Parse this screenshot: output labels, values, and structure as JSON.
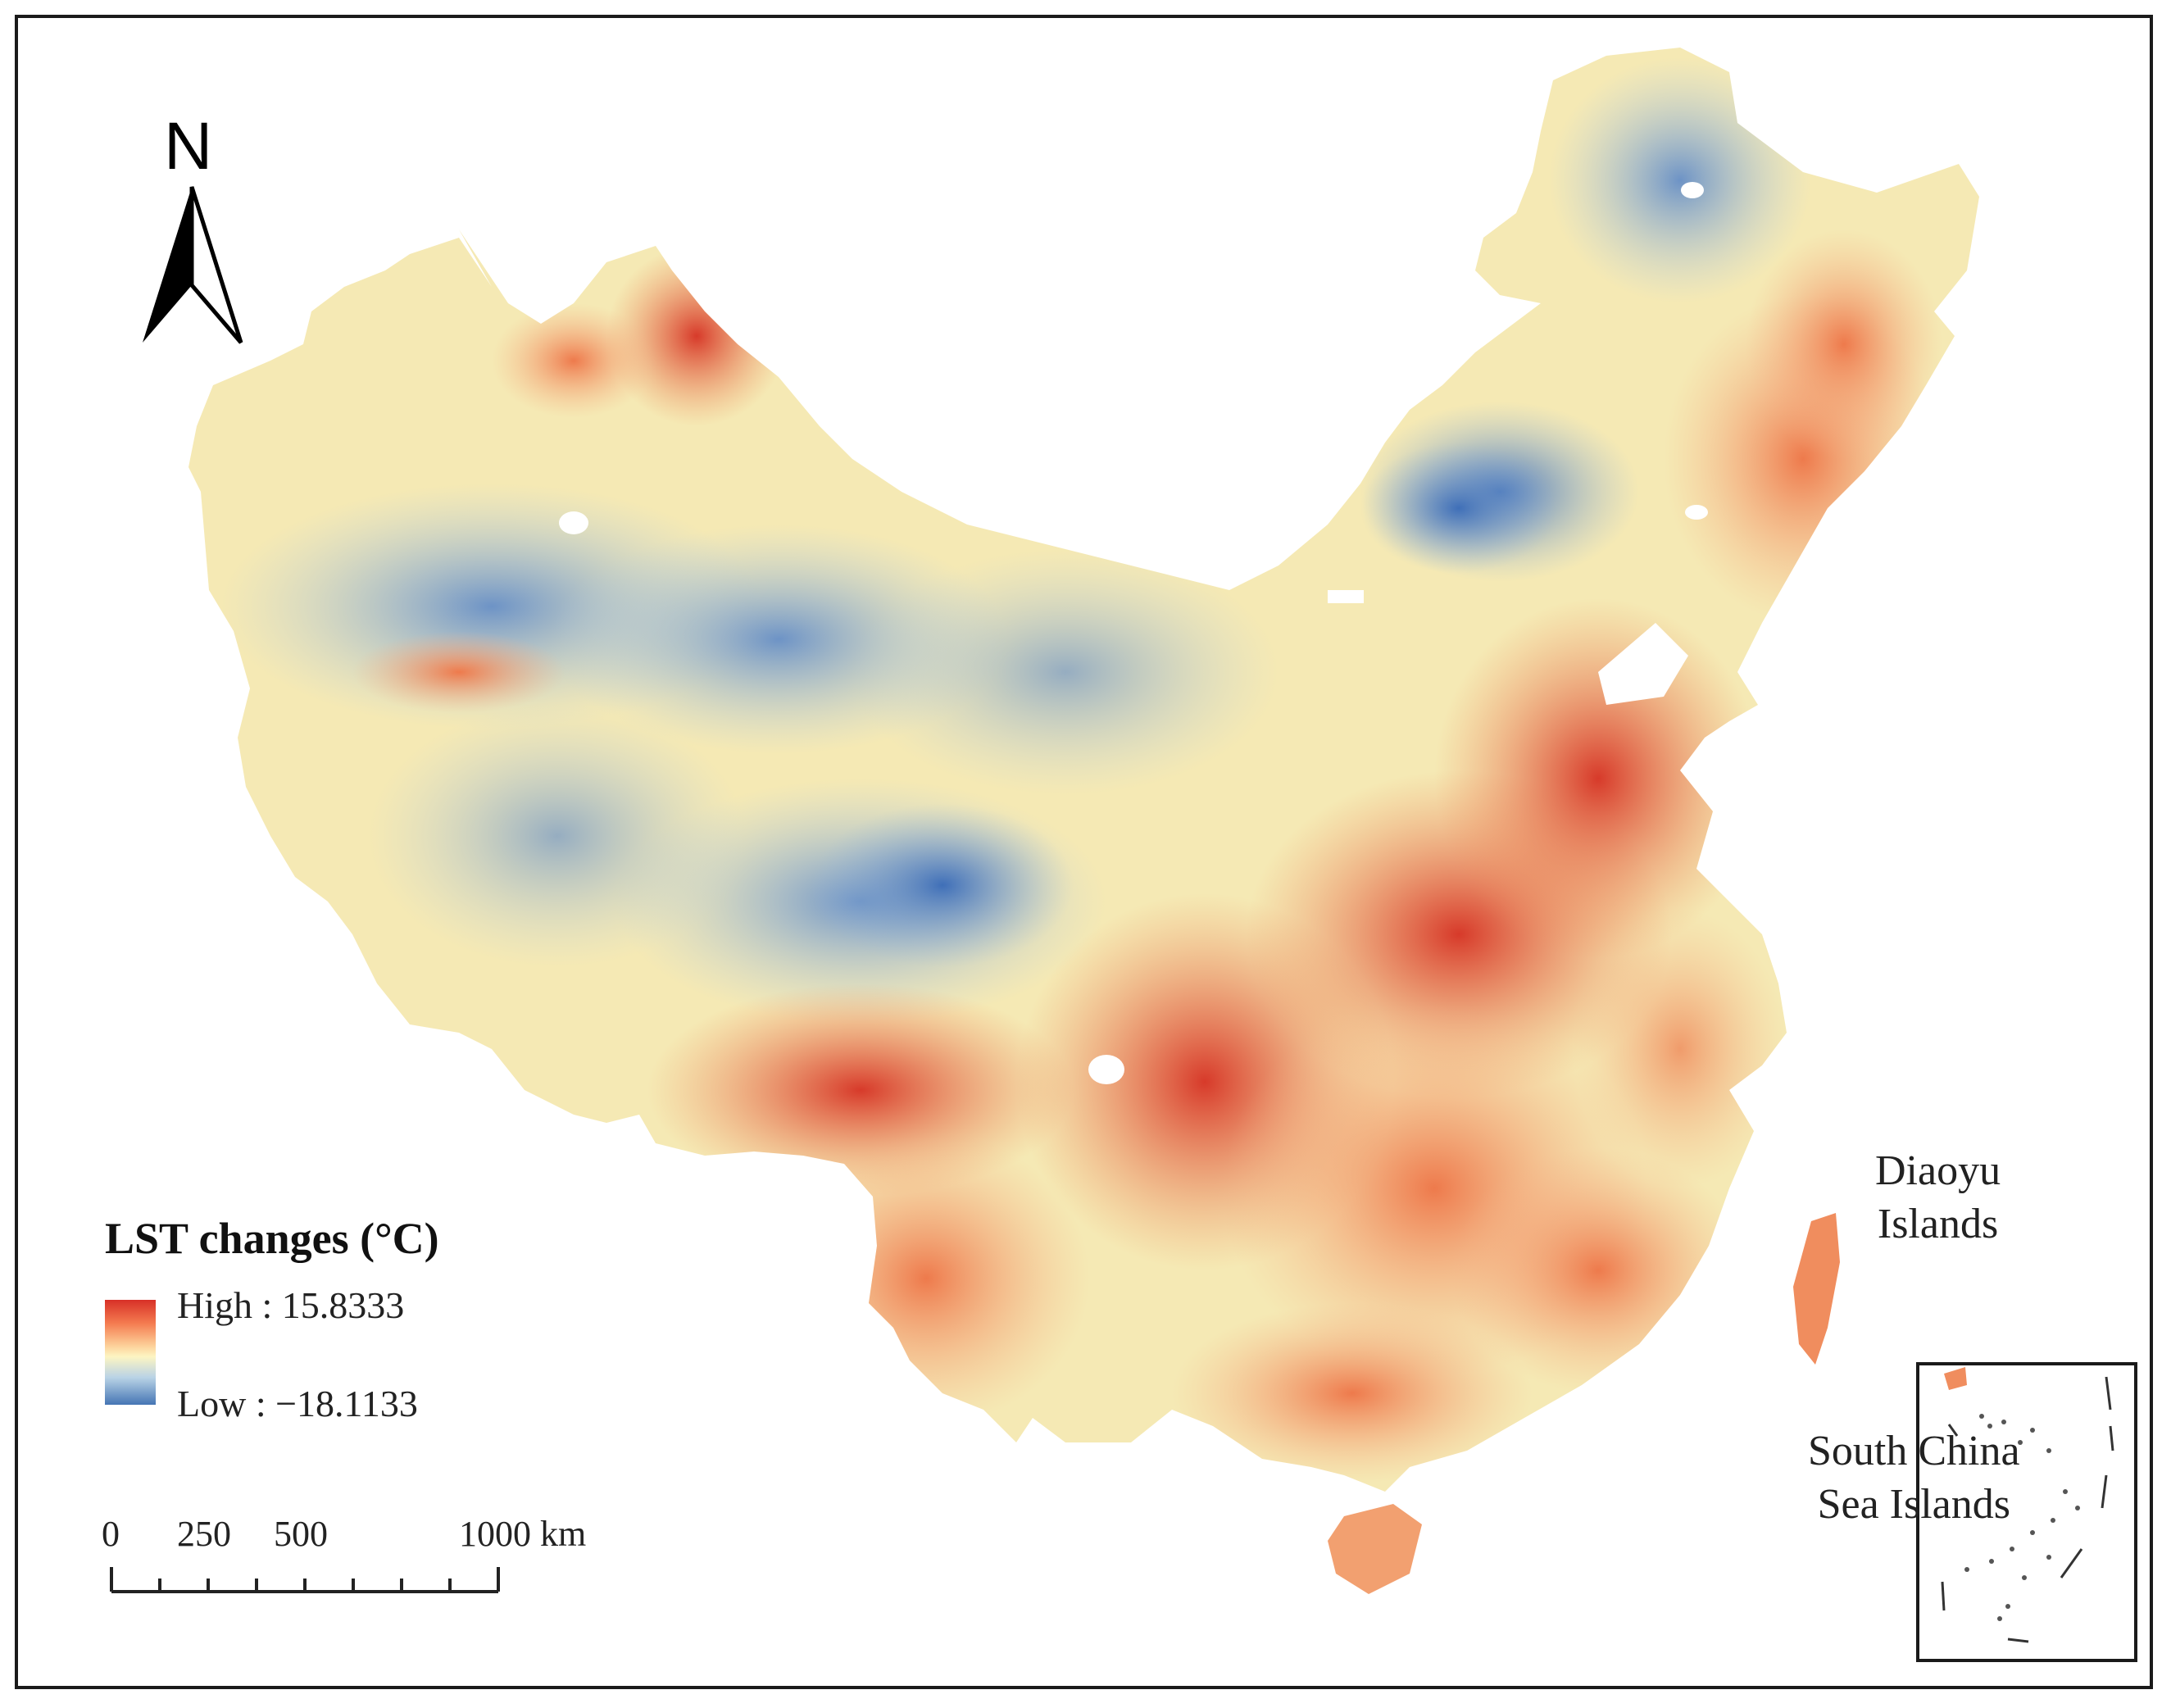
{
  "map": {
    "north_label": "N",
    "legend": {
      "title": "LST changes (°C)",
      "high_label": "High : 15.8333",
      "low_label": "Low : −18.1133",
      "high_color": "#d73027",
      "mid_color": "#fdf5c2",
      "low_color": "#4575b4"
    },
    "scale_bar": {
      "labels": [
        "0",
        "250",
        "500",
        "1000 km"
      ]
    },
    "labels": {
      "diaoyu_line1": "Diaoyu",
      "diaoyu_line2": "Islands",
      "scs_line1": "South China",
      "scs_line2": "Sea Islands"
    }
  }
}
